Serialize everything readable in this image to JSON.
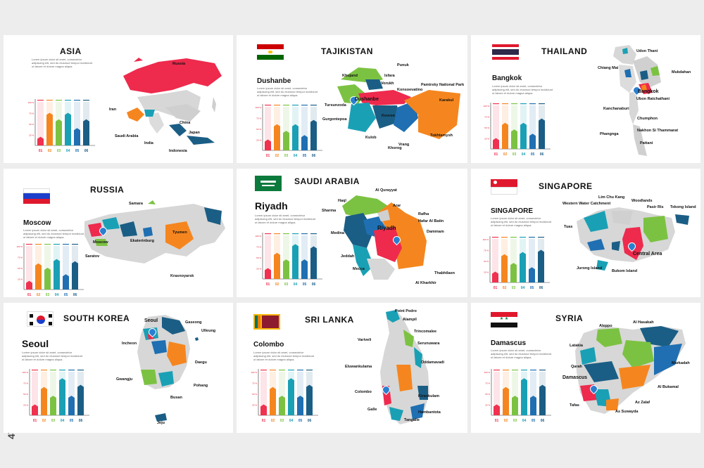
{
  "watermark": "474566596",
  "lorem": "Lorem ipsum dolor sit amet, consectetur adipiscing elit, sed do eiusmod tempor incididunt ut labore et dolore magna aliqua.",
  "chart_template": {
    "ticks": [
      "100 %",
      "75 %",
      "50 %",
      "25 %"
    ],
    "categories": [
      "01",
      "02",
      "03",
      "04",
      "05",
      "06"
    ],
    "colors": [
      "#f0314f",
      "#f5861f",
      "#7cc242",
      "#1aa0b5",
      "#1f6fb2",
      "#1b5e85"
    ]
  },
  "slides": [
    {
      "title": "ASIA",
      "capital": "",
      "flag": "",
      "labels": [
        "Russia",
        "Iran",
        "China",
        "Saudi Arabia",
        "Japan",
        "India",
        "Indonesia"
      ],
      "chart_values": [
        20,
        75,
        60,
        75,
        40,
        60
      ]
    },
    {
      "title": "TAJIKISTAN",
      "capital": "Dushanbe",
      "flag": "tajikistan",
      "labels": [
        "Punuk",
        "Khujand",
        "Isfara",
        "Vorukh",
        "Konsoevatino",
        "Pamirsky National Park",
        "Dushanbe",
        "Tursunzoda",
        "Gurgontepoa",
        "Kevron",
        "Kulob",
        "Khorog",
        "Vrang",
        "Tokhtamysh",
        "Karakul"
      ],
      "chart_values": [
        25,
        60,
        45,
        60,
        35,
        70
      ]
    },
    {
      "title": "THAILAND",
      "capital": "Bangkok",
      "flag": "thailand",
      "labels": [
        "Udon Thani",
        "Chiang Mai",
        "Mukdahan",
        "Bangkok",
        "Ubon Ratchathani",
        "Kanchanaburi",
        "Chumphon",
        "Phangnga",
        "Nakhon Si Thammarat",
        "Pattani"
      ],
      "chart_values": [
        25,
        60,
        45,
        60,
        35,
        70
      ]
    },
    {
      "title": "RUSSIA",
      "capital": "Moscow",
      "flag": "russia",
      "labels": [
        "Samara",
        "Moscow",
        "Tyumen",
        "Ekaterinburg",
        "Saratov",
        "Krasnoyarsk"
      ],
      "chart_values": [
        20,
        60,
        50,
        70,
        35,
        65
      ]
    },
    {
      "title": "SAUDI ARABIA",
      "capital": "Riyadh",
      "flag": "saudi",
      "labels": [
        "Al Qurayyat",
        "Haql",
        "Arar",
        "Sharma",
        "Rafha",
        "Hafar Al Batin",
        "Riyadh",
        "Dammam",
        "Medina",
        "Jeddah",
        "Mecca",
        "Thabhilaen",
        "Al Kharkhir"
      ],
      "chart_values": [
        25,
        60,
        45,
        80,
        45,
        75
      ]
    },
    {
      "title": "SINGAPORE",
      "capital": "SINGAPORE",
      "flag": "singapore",
      "labels": [
        "Lim Chu Kang",
        "Western Water Catchment",
        "Woodlands",
        "Pasir Ris",
        "Tekong Island",
        "Tuas",
        "Central Area",
        "Jurong Island",
        "Bukom Island"
      ],
      "chart_values": [
        25,
        65,
        45,
        70,
        35,
        75
      ]
    },
    {
      "title": "SOUTH KOREA",
      "capital": "Seoul",
      "flag": "korea",
      "labels": [
        "Seoul",
        "Gaseong",
        "Ulleung",
        "Incheon",
        "Daegu",
        "Gwangju",
        "Pohang",
        "Busan",
        "Jeju"
      ],
      "chart_values": [
        25,
        65,
        45,
        85,
        45,
        70
      ]
    },
    {
      "title": "SRI LANKA",
      "capital": "Colombo",
      "flag": "srilanka",
      "labels": [
        "Point Pedro",
        "Alampil",
        "Variveli",
        "Trincomalee",
        "Serunuwara",
        "Oddamavadi",
        "Eluwankulama",
        "Colombo",
        "Kirankulam",
        "Galle",
        "Hambantota",
        "Tangalle"
      ],
      "chart_values": [
        25,
        65,
        45,
        85,
        45,
        70
      ]
    },
    {
      "title": "SYRIA",
      "capital": "Damascus",
      "flag": "syria",
      "labels": [
        "Aleppo",
        "Al Hasakah",
        "Latakia",
        "Markadah",
        "Qarah",
        "Damascus",
        "Al Bukamal",
        "Tafas",
        "Az Zalaf",
        "As Suwayda"
      ],
      "chart_values": [
        25,
        65,
        45,
        85,
        45,
        70
      ]
    }
  ]
}
